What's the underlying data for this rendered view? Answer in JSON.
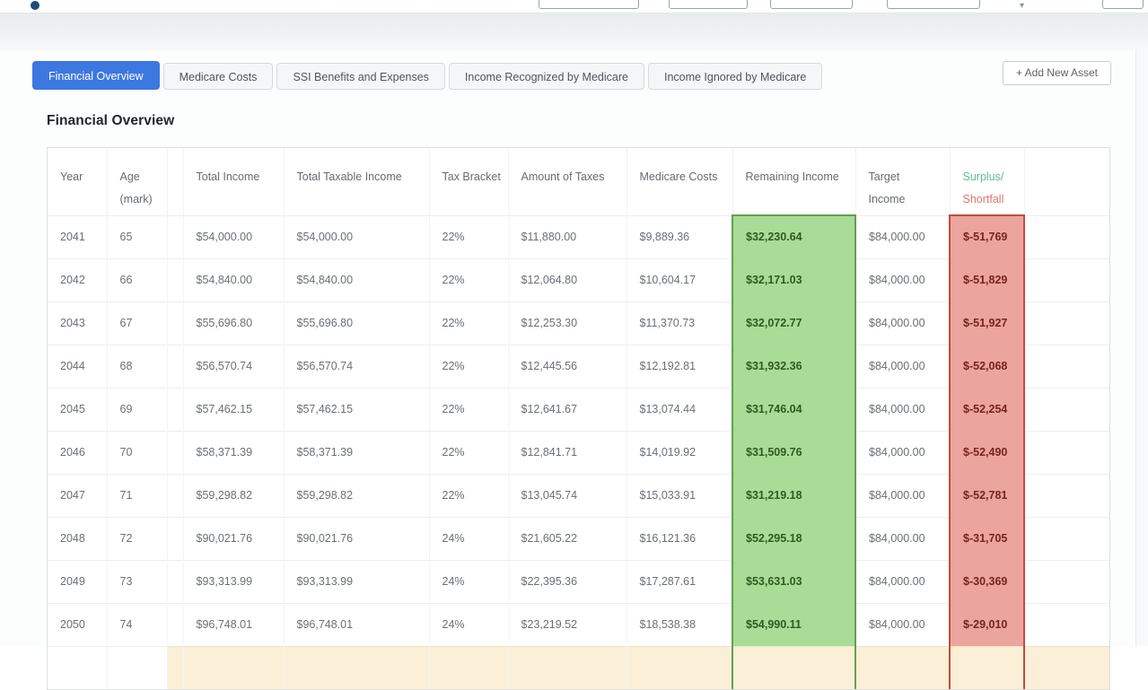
{
  "tabs": [
    {
      "label": "Financial Overview",
      "active": true
    },
    {
      "label": "Medicare Costs",
      "active": false
    },
    {
      "label": "SSI Benefits and Expenses",
      "active": false
    },
    {
      "label": "Income Recognized by Medicare",
      "active": false
    },
    {
      "label": "Income Ignored by Medicare",
      "active": false
    }
  ],
  "toolbar": {
    "add_asset_label": "+ Add New Asset"
  },
  "page": {
    "section_title": "Financial Overview"
  },
  "table": {
    "columns": [
      {
        "lines": [
          "Year"
        ]
      },
      {
        "lines": [
          "Age",
          "(mark)"
        ]
      },
      {
        "lines": [
          "Total Income"
        ]
      },
      {
        "lines": [
          "Total Taxable Income"
        ]
      },
      {
        "lines": [
          "Tax Bracket"
        ]
      },
      {
        "lines": [
          "Amount of Taxes"
        ]
      },
      {
        "lines": [
          "Medicare Costs"
        ]
      },
      {
        "lines": [
          "Remaining Income"
        ]
      },
      {
        "lines": [
          "Target",
          "Income"
        ]
      },
      {
        "lines": [
          "Surplus/",
          "Shortfall"
        ],
        "dual_color": true
      }
    ],
    "rows": [
      [
        "2041",
        "65",
        "$54,000.00",
        "$54,000.00",
        "22%",
        "$11,880.00",
        "$9,889.36",
        "$32,230.64",
        "$84,000.00",
        "$-51,769"
      ],
      [
        "2042",
        "66",
        "$54,840.00",
        "$54,840.00",
        "22%",
        "$12,064.80",
        "$10,604.17",
        "$32,171.03",
        "$84,000.00",
        "$-51,829"
      ],
      [
        "2043",
        "67",
        "$55,696.80",
        "$55,696.80",
        "22%",
        "$12,253.30",
        "$11,370.73",
        "$32,072.77",
        "$84,000.00",
        "$-51,927"
      ],
      [
        "2044",
        "68",
        "$56,570.74",
        "$56,570.74",
        "22%",
        "$12,445.56",
        "$12,192.81",
        "$31,932.36",
        "$84,000.00",
        "$-52,068"
      ],
      [
        "2045",
        "69",
        "$57,462.15",
        "$57,462.15",
        "22%",
        "$12,641.67",
        "$13,074.44",
        "$31,746.04",
        "$84,000.00",
        "$-52,254"
      ],
      [
        "2046",
        "70",
        "$58,371.39",
        "$58,371.39",
        "22%",
        "$12,841.71",
        "$14,019.92",
        "$31,509.76",
        "$84,000.00",
        "$-52,490"
      ],
      [
        "2047",
        "71",
        "$59,298.82",
        "$59,298.82",
        "22%",
        "$13,045.74",
        "$15,033.91",
        "$31,219.18",
        "$84,000.00",
        "$-52,781"
      ],
      [
        "2048",
        "72",
        "$90,021.76",
        "$90,021.76",
        "24%",
        "$21,605.22",
        "$16,121.36",
        "$52,295.18",
        "$84,000.00",
        "$-31,705"
      ],
      [
        "2049",
        "73",
        "$93,313.99",
        "$93,313.99",
        "24%",
        "$22,395.36",
        "$17,287.61",
        "$53,631.03",
        "$84,000.00",
        "$-30,369"
      ],
      [
        "2050",
        "74",
        "$96,748.01",
        "$96,748.01",
        "24%",
        "$23,219.52",
        "$18,538.38",
        "$54,990.11",
        "$84,000.00",
        "$-29,010"
      ]
    ],
    "partial_next_row_visible": true
  },
  "colors": {
    "active_tab_blue": "#3d77e0",
    "surplus_header_green": "#5fbd8c",
    "shortfall_header_red": "#e0756a",
    "remaining_income_bg": "#a9dc97",
    "remaining_income_border": "#61a04e",
    "shortfall_bg": "#eba59e",
    "shortfall_border": "#c24b3c",
    "highlight_row_cream": "#fbf0d7"
  }
}
